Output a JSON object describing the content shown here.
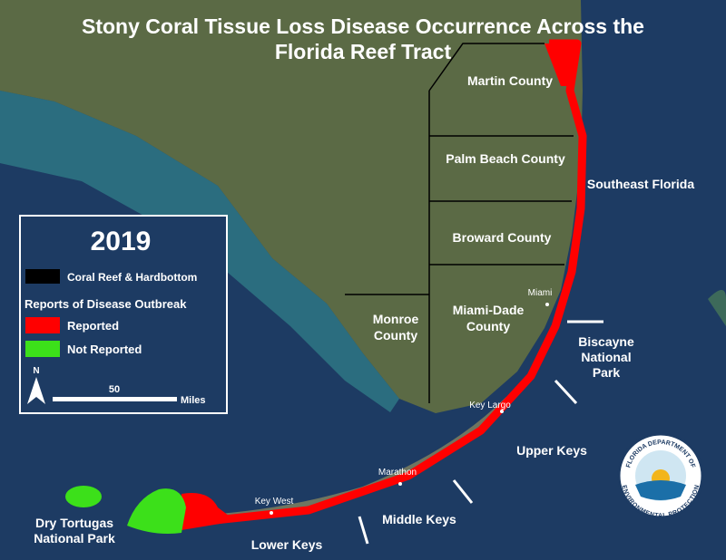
{
  "title": {
    "lines": [
      "Stony Coral Tissue Loss Disease Occurrence Across the",
      "Florida Reef Tract"
    ]
  },
  "counties": {
    "martin": "Martin County",
    "palm_beach": "Palm Beach County",
    "broward": "Broward County",
    "miami_dade": [
      "Miami-Dade",
      "County"
    ],
    "monroe": [
      "Monroe",
      "County"
    ]
  },
  "regions": {
    "southeast_florida": "Southeast Florida",
    "biscayne": [
      "Biscayne",
      "National",
      "Park"
    ],
    "upper_keys": "Upper Keys",
    "middle_keys": "Middle Keys",
    "lower_keys": "Lower Keys",
    "dry_tortugas": [
      "Dry Tortugas",
      "National Park"
    ]
  },
  "cities": {
    "miami": "Miami",
    "key_largo": "Key Largo",
    "marathon": "Marathon",
    "key_west": "Key West"
  },
  "legend": {
    "year": "2019",
    "reef": "Coral Reef & Hardbottom",
    "heading": "Reports of Disease Outbreak",
    "reported": "Reported",
    "not_reported": "Not Reported",
    "north": "N",
    "scale": "50",
    "scale_unit": "Miles"
  },
  "logo": {
    "top": "FLORIDA DEPARTMENT OF",
    "bottom": "ENVIRONMENTAL PROTECTION"
  }
}
